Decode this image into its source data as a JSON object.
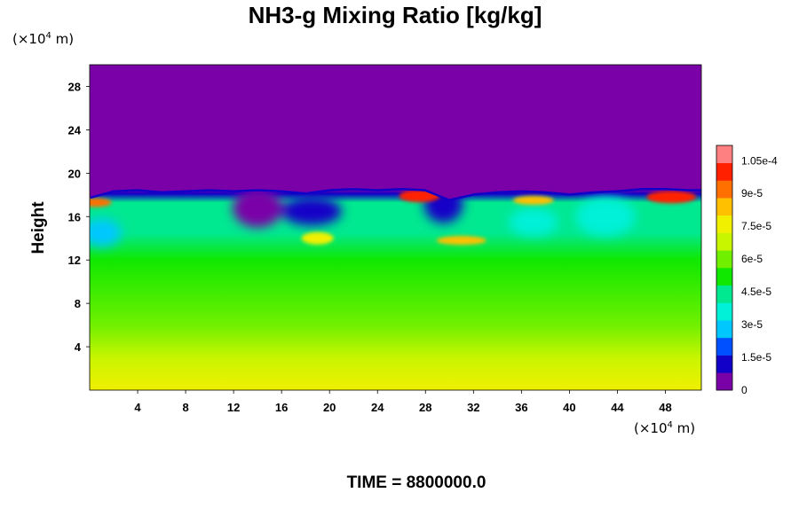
{
  "chart_data": {
    "type": "heatmap",
    "title": "NH3-g Mixing Ratio [kg/kg]",
    "ylabel": "Height",
    "xlabel": "",
    "x_unit": {
      "prefix": "(×10",
      "exp": "4",
      "suffix": " m)"
    },
    "y_unit": {
      "prefix": "(×10",
      "exp": "4",
      "suffix": " m)"
    },
    "x_ticks": [
      "4",
      "8",
      "12",
      "16",
      "20",
      "24",
      "28",
      "32",
      "36",
      "40",
      "44",
      "48"
    ],
    "y_ticks": [
      "4",
      "8",
      "12",
      "16",
      "20",
      "24",
      "28"
    ],
    "xlim": [
      0,
      51
    ],
    "ylim": [
      0,
      30
    ],
    "colorbar": {
      "range": [
        0,
        0.000112
      ],
      "tick_labels": [
        "0",
        "1.5e-5",
        "3e-5",
        "4.5e-5",
        "6e-5",
        "7.5e-5",
        "9e-5",
        "1.05e-4"
      ],
      "tick_values": [
        0,
        1.5e-05,
        3e-05,
        4.5e-05,
        6e-05,
        7.5e-05,
        9e-05,
        0.000105
      ],
      "colors": [
        "#7a00a8",
        "#1200c8",
        "#0050ff",
        "#00c8ff",
        "#00f0d8",
        "#00e890",
        "#10e800",
        "#70f000",
        "#c8f500",
        "#f0f000",
        "#ffc000",
        "#ff7000",
        "#ff2000",
        "#ff8080"
      ]
    },
    "field_summary": {
      "upper_layer_value": 0,
      "interface_height_approx": 18.5,
      "bottom_layer_value_approx": 7.7e-05,
      "mid_layer_value_approx": 5.5e-05,
      "peak_value_approx": 0.000102
    },
    "interface_heights": [
      {
        "x": 0,
        "y": 18.0
      },
      {
        "x": 2,
        "y": 18.6
      },
      {
        "x": 4,
        "y": 18.7
      },
      {
        "x": 6,
        "y": 18.5
      },
      {
        "x": 8,
        "y": 18.6
      },
      {
        "x": 10,
        "y": 18.7
      },
      {
        "x": 12,
        "y": 18.6
      },
      {
        "x": 14,
        "y": 18.7
      },
      {
        "x": 16,
        "y": 18.6
      },
      {
        "x": 18,
        "y": 18.4
      },
      {
        "x": 20,
        "y": 18.7
      },
      {
        "x": 22,
        "y": 18.8
      },
      {
        "x": 24,
        "y": 18.7
      },
      {
        "x": 26,
        "y": 18.8
      },
      {
        "x": 28,
        "y": 18.7
      },
      {
        "x": 30,
        "y": 17.8
      },
      {
        "x": 32,
        "y": 18.3
      },
      {
        "x": 34,
        "y": 18.5
      },
      {
        "x": 36,
        "y": 18.6
      },
      {
        "x": 38,
        "y": 18.5
      },
      {
        "x": 40,
        "y": 18.3
      },
      {
        "x": 42,
        "y": 18.5
      },
      {
        "x": 44,
        "y": 18.6
      },
      {
        "x": 46,
        "y": 18.8
      },
      {
        "x": 48,
        "y": 18.8
      },
      {
        "x": 50,
        "y": 18.7
      }
    ],
    "depleted_pockets": [
      {
        "x": 1.0,
        "y": 14.5,
        "value": 2.5e-05
      },
      {
        "x": 14.0,
        "y": 16.8,
        "value": 5e-06
      },
      {
        "x": 18.5,
        "y": 16.5,
        "value": 1e-05
      },
      {
        "x": 29.5,
        "y": 17.2,
        "value": 8e-06
      },
      {
        "x": 37.0,
        "y": 15.5,
        "value": 3.5e-05
      },
      {
        "x": 43.0,
        "y": 16.0,
        "value": 3.5e-05
      }
    ],
    "enriched_pockets": [
      {
        "x": 0.5,
        "y": 17.3,
        "value": 9e-05
      },
      {
        "x": 27.5,
        "y": 17.9,
        "value": 0.0001
      },
      {
        "x": 31.0,
        "y": 13.8,
        "value": 8.5e-05
      },
      {
        "x": 19.0,
        "y": 14.0,
        "value": 7.5e-05
      },
      {
        "x": 37.0,
        "y": 17.5,
        "value": 8.5e-05
      },
      {
        "x": 48.5,
        "y": 17.8,
        "value": 0.000102
      }
    ]
  },
  "footer": {
    "time_label": "TIME = 8800000.0"
  }
}
